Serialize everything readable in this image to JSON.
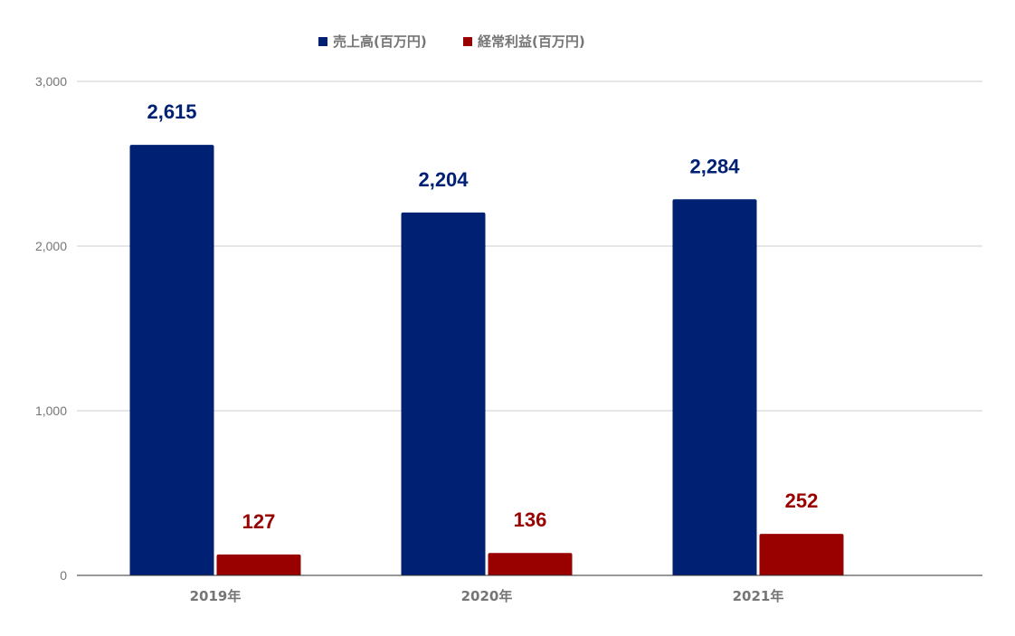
{
  "chart_data": {
    "type": "bar",
    "title": "",
    "xlabel": "",
    "ylabel": "",
    "categories": [
      "2019年",
      "2020年",
      "2021年"
    ],
    "series": [
      {
        "name": "売上高(百万円)",
        "color": "#002074",
        "values": [
          2615,
          2204,
          2284
        ],
        "labels": [
          "2,615",
          "2,204",
          "2,284"
        ]
      },
      {
        "name": "経常利益(百万円)",
        "color": "#990000",
        "values": [
          127,
          136,
          252
        ],
        "labels": [
          "127",
          "136",
          "252"
        ]
      }
    ],
    "ylim": [
      0,
      3000
    ],
    "yticks": [
      0,
      1000,
      2000,
      3000
    ],
    "ytick_labels": [
      "0",
      "1,000",
      "2,000",
      "3,000"
    ],
    "grid": true,
    "legend_position": "top",
    "colors": {
      "grid": "#cccccc",
      "baseline": "#333333",
      "axis_text": "#757575"
    }
  }
}
